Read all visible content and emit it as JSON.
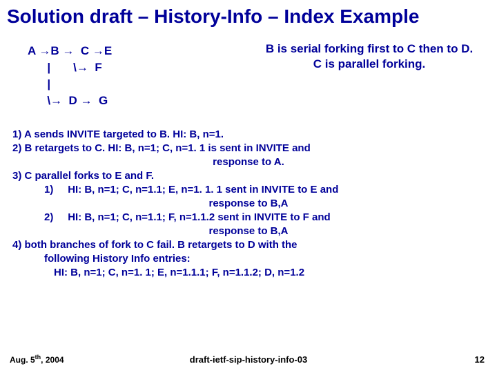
{
  "title": "Solution draft – History-Info – Index Example",
  "diagram": {
    "line1": "A →B →  C →E",
    "line2": "      |       \\→  F",
    "line3": "      |",
    "line4": "      \\→  D →  G"
  },
  "note": {
    "line1": "B is serial forking first to C then to D.",
    "line2": "C is parallel forking."
  },
  "body": {
    "l1": "1)  A sends INVITE targeted to B. HI: B, n=1.",
    "l2": "2)   B retargets to C. HI: B, n=1; C, n=1. 1 is sent in  INVITE and",
    "l2b": "response to A.",
    "l3": "3) C parallel forks to E and F.",
    "l4a": "1)",
    "l4b": "HI: B, n=1; C, n=1.1; E, n=1. 1. 1 sent in INVITE to E and",
    "l4c": "response to B,A",
    "l5a": "2)",
    "l5b": "HI: B, n=1; C, n=1.1; F, n=1.1.2 sent in INVITE to F and",
    "l5c": "response to B,A",
    "l6": "4) both branches of fork to C fail. B retargets to D with the",
    "l6b": "following History Info entries:",
    "l7": "HI: B, n=1; C, n=1. 1; E, n=1.1.1; F, n=1.1.2; D, n=1.2"
  },
  "footer": {
    "date_pre": "Aug. 5",
    "date_sup": "th",
    "date_post": ", 2004",
    "center": "draft-ietf-sip-history-info-03",
    "page": "12"
  },
  "colors": {
    "title": "#000099",
    "text": "#000099",
    "footer": "#000000",
    "background": "#ffffff"
  }
}
